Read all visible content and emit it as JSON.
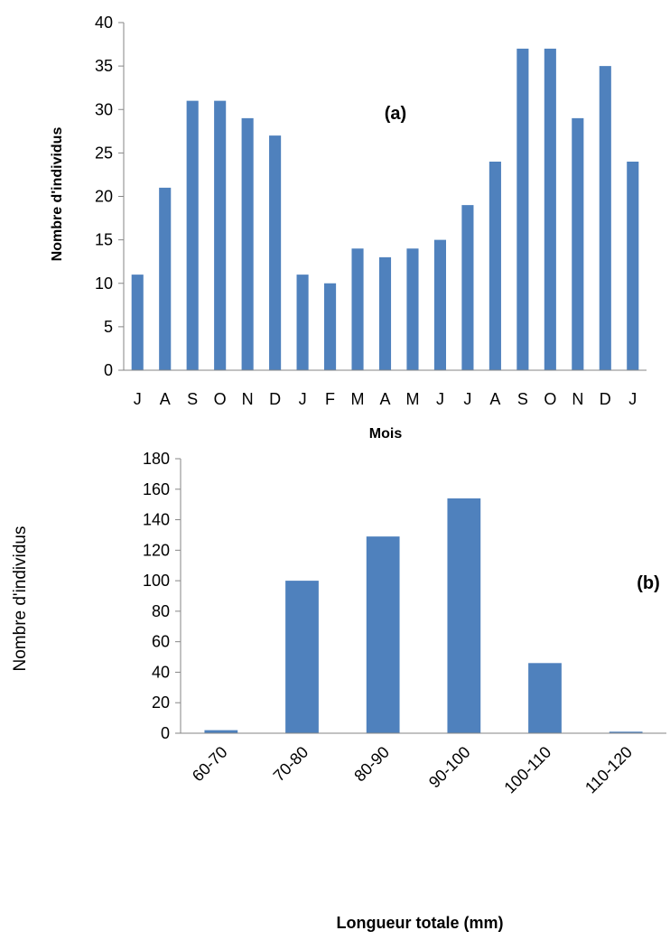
{
  "chart_data": [
    {
      "type": "bar",
      "panel_label": "(a)",
      "categories": [
        "J",
        "A",
        "S",
        "O",
        "N",
        "D",
        "J",
        "F",
        "M",
        "A",
        "M",
        "J",
        "J",
        "A",
        "S",
        "O",
        "N",
        "D",
        "J"
      ],
      "values": [
        11,
        21,
        31,
        31,
        29,
        27,
        11,
        10,
        14,
        13,
        14,
        15,
        19,
        24,
        37,
        37,
        29,
        35,
        24
      ],
      "xlabel": "Mois",
      "ylabel": "Nombre d'individus",
      "ylim": [
        0,
        40
      ],
      "yticks": [
        0,
        5,
        10,
        15,
        20,
        25,
        30,
        35,
        40
      ],
      "color": "#4f81bd",
      "grid": false,
      "legend": "none"
    },
    {
      "type": "bar",
      "panel_label": "(b)",
      "categories": [
        "60-70",
        "70-80",
        "80-90",
        "90-100",
        "100-110",
        "110-120"
      ],
      "values": [
        2,
        100,
        129,
        154,
        46,
        1
      ],
      "xlabel": "Longueur totale (mm)",
      "ylabel": "Nombre d'individus",
      "ylim": [
        0,
        180
      ],
      "yticks": [
        0,
        20,
        40,
        60,
        80,
        100,
        120,
        140,
        160,
        180
      ],
      "color": "#4f81bd",
      "grid": false,
      "legend": "none"
    }
  ]
}
